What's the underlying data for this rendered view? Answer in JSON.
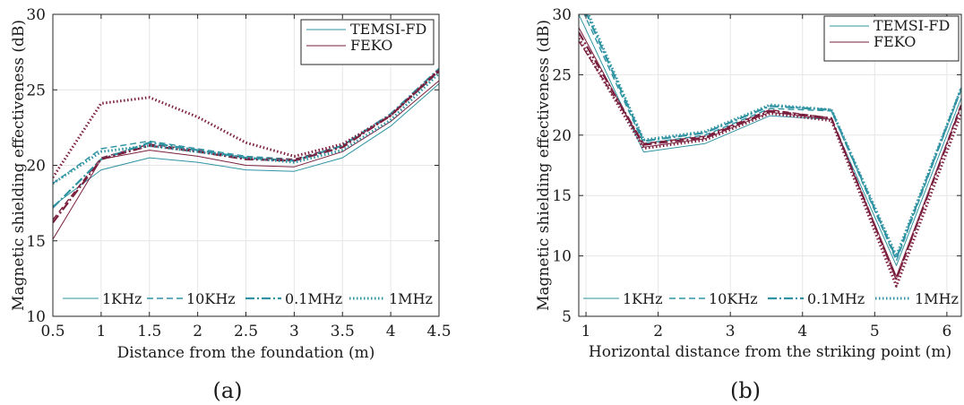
{
  "colors": {
    "temsi": "#2f93a3",
    "feko": "#7a1f3d",
    "grid": "#e6e6e6",
    "axis": "#262626"
  },
  "chart_data": [
    {
      "type": "line",
      "caption": "(a)",
      "xlabel": "Distance from the foundation (m)",
      "ylabel": "Magnetic shielding effectiveness (dB)",
      "xlim": [
        0.5,
        4.5
      ],
      "ylim": [
        10,
        30
      ],
      "xticks": [
        0.5,
        1,
        1.5,
        2,
        2.5,
        3,
        3.5,
        4,
        4.5
      ],
      "yticks": [
        10,
        15,
        20,
        25,
        30
      ],
      "x": [
        0.5,
        1,
        1.5,
        2,
        2.5,
        3,
        3.5,
        4,
        4.5
      ],
      "grid": true,
      "legend_top": [
        {
          "label": "TEMSI-FD",
          "color": "temsi"
        },
        {
          "label": "FEKO",
          "color": "feko"
        }
      ],
      "legend_bottom": [
        {
          "label": "1KHz",
          "dash": "solid"
        },
        {
          "label": "10KHz",
          "dash": "dashed"
        },
        {
          "label": "0.1MHz",
          "dash": "dashdot"
        },
        {
          "label": "1MHz",
          "dash": "dotted"
        }
      ],
      "series": [
        {
          "source": "temsi",
          "freq": "1KHz",
          "values": [
            17.3,
            19.7,
            20.5,
            20.2,
            19.7,
            19.6,
            20.5,
            22.6,
            25.4
          ]
        },
        {
          "source": "feko",
          "freq": "1KHz",
          "values": [
            15.1,
            20.4,
            21.0,
            20.6,
            20.0,
            19.9,
            20.9,
            22.9,
            25.6
          ]
        },
        {
          "source": "temsi",
          "freq": "10KHz",
          "values": [
            18.8,
            21.1,
            21.6,
            21.1,
            20.6,
            20.4,
            21.3,
            23.3,
            26.3
          ]
        },
        {
          "source": "feko",
          "freq": "10KHz",
          "values": [
            16.4,
            20.5,
            21.4,
            21.0,
            20.5,
            20.4,
            21.3,
            23.3,
            26.2
          ]
        },
        {
          "source": "temsi",
          "freq": "0.1MHz",
          "values": [
            17.2,
            20.4,
            21.5,
            21.0,
            20.5,
            20.3,
            21.3,
            23.4,
            26.4
          ]
        },
        {
          "source": "feko",
          "freq": "0.1MHz",
          "values": [
            16.2,
            20.4,
            21.3,
            20.9,
            20.4,
            20.3,
            21.2,
            23.3,
            26.3
          ]
        },
        {
          "source": "temsi",
          "freq": "1MHz",
          "values": [
            18.8,
            20.9,
            21.3,
            20.9,
            20.5,
            20.2,
            21.0,
            23.0,
            26.1
          ]
        },
        {
          "source": "feko",
          "freq": "1MHz",
          "values": [
            19.2,
            24.1,
            24.5,
            23.2,
            21.5,
            20.6,
            21.4,
            23.3,
            26.3
          ]
        }
      ]
    },
    {
      "type": "line",
      "caption": "(b)",
      "xlabel": "Horizontal distance from the  striking point (m)",
      "ylabel": "Magnetic shielding effectiveness (dB)",
      "xlim": [
        0.9,
        6.2
      ],
      "ylim": [
        5,
        30
      ],
      "xticks": [
        1,
        2,
        3,
        4,
        5,
        6
      ],
      "yticks": [
        5,
        10,
        15,
        20,
        25,
        30
      ],
      "x": [
        0.9,
        1.8,
        2.65,
        3.55,
        4.4,
        5.3,
        6.2
      ],
      "grid": true,
      "legend_top": [
        {
          "label": "TEMSI-FD",
          "color": "temsi"
        },
        {
          "label": "FEKO",
          "color": "feko"
        }
      ],
      "legend_bottom": [
        {
          "label": "1KHz",
          "dash": "solid"
        },
        {
          "label": "10KHz",
          "dash": "dashed"
        },
        {
          "label": "0.1MHz",
          "dash": "dashdot"
        },
        {
          "label": "1MHz",
          "dash": "dotted"
        }
      ],
      "series": [
        {
          "source": "temsi",
          "freq": "1KHz",
          "values": [
            30.0,
            18.6,
            19.3,
            21.6,
            21.3,
            9.2,
            23.1
          ]
        },
        {
          "source": "feko",
          "freq": "1KHz",
          "values": [
            28.9,
            19.0,
            19.7,
            21.9,
            21.3,
            8.3,
            22.5
          ]
        },
        {
          "source": "temsi",
          "freq": "10KHz",
          "values": [
            31.0,
            19.3,
            20.0,
            22.2,
            22.0,
            9.6,
            23.8
          ]
        },
        {
          "source": "feko",
          "freq": "10KHz",
          "values": [
            27.8,
            19.3,
            19.9,
            22.1,
            21.4,
            8.0,
            22.6
          ]
        },
        {
          "source": "temsi",
          "freq": "0.1MHz",
          "values": [
            31.5,
            19.5,
            20.2,
            22.4,
            22.1,
            9.8,
            23.9
          ]
        },
        {
          "source": "feko",
          "freq": "0.1MHz",
          "values": [
            28.5,
            19.2,
            19.8,
            22.0,
            21.4,
            8.1,
            22.4
          ]
        },
        {
          "source": "temsi",
          "freq": "1MHz",
          "values": [
            31.8,
            19.6,
            20.3,
            22.5,
            22.1,
            10.0,
            23.9
          ]
        },
        {
          "source": "feko",
          "freq": "1MHz",
          "values": [
            28.0,
            18.9,
            19.6,
            21.8,
            21.2,
            7.5,
            21.8
          ]
        }
      ]
    }
  ]
}
